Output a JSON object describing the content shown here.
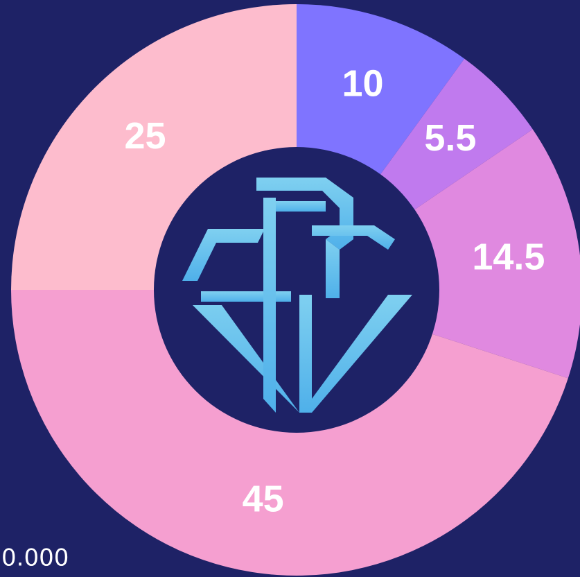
{
  "chart_data": {
    "type": "donut",
    "values": [
      10,
      5.5,
      14.5,
      45,
      25
    ],
    "colors": [
      "#7f74ff",
      "#c07aee",
      "#e089e0",
      "#f59fd0",
      "#fdbccd"
    ]
  },
  "caption": "0.000"
}
